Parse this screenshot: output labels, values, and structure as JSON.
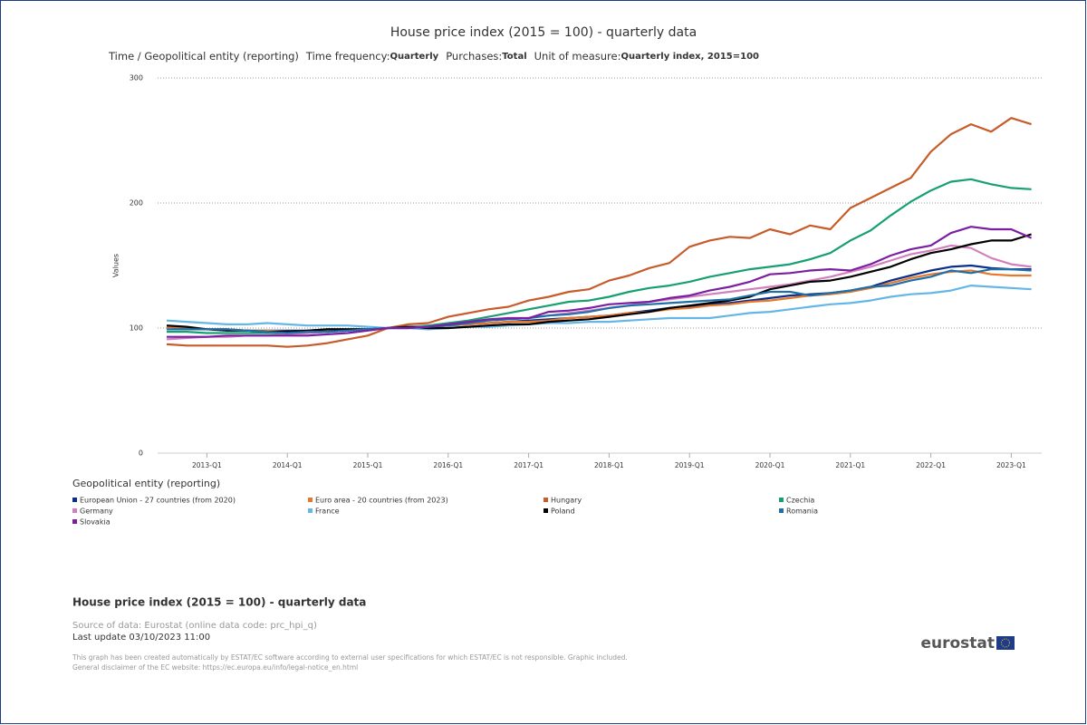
{
  "chart_data": {
    "type": "line",
    "title": "House price index (2015 = 100) - quarterly data",
    "dimensions": "Time / Geopolitical entity (reporting)",
    "filters": [
      {
        "label": "Time frequency:",
        "value": "Quarterly"
      },
      {
        "label": "Purchases:",
        "value": "Total"
      },
      {
        "label": "Unit of measure:",
        "value": "Quarterly index, 2015=100"
      }
    ],
    "y_label": "Values",
    "legend_title": "Geopolitical entity (reporting)",
    "ylim": [
      0,
      300
    ],
    "yticks": [
      0,
      100,
      200,
      300
    ],
    "grid": true,
    "categories": [
      null,
      null,
      "2013-Q1",
      null,
      null,
      null,
      "2014-Q1",
      null,
      null,
      null,
      "2015-Q1",
      null,
      null,
      null,
      "2016-Q1",
      null,
      null,
      null,
      "2017-Q1",
      null,
      null,
      null,
      "2018-Q1",
      null,
      null,
      null,
      "2019-Q1",
      null,
      null,
      null,
      "2020-Q1",
      null,
      null,
      null,
      "2021-Q1",
      null,
      null,
      null,
      "2022-Q1",
      null,
      null,
      null,
      "2023-Q1",
      null
    ],
    "series": [
      {
        "name": "European Union - 27 countries (from 2020)",
        "color": "#0b2e8a",
        "values": [
          101,
          100,
          99,
          99,
          98,
          98,
          98,
          98,
          99,
          99,
          99,
          100,
          101,
          101,
          102,
          103,
          104,
          105,
          106,
          107,
          108,
          109,
          110,
          112,
          114,
          116,
          117,
          119,
          120,
          122,
          124,
          126,
          127,
          128,
          130,
          133,
          138,
          142,
          146,
          149,
          150,
          148,
          147,
          147
        ]
      },
      {
        "name": "Euro area - 20 countries (from 2023)",
        "color": "#e3782f",
        "values": [
          101,
          100,
          99,
          99,
          98,
          98,
          97,
          98,
          98,
          99,
          99,
          100,
          100,
          101,
          102,
          103,
          104,
          105,
          105,
          106,
          108,
          109,
          110,
          112,
          113,
          115,
          116,
          118,
          119,
          121,
          122,
          124,
          126,
          127,
          129,
          132,
          136,
          140,
          143,
          145,
          146,
          143,
          142,
          142
        ]
      },
      {
        "name": "Hungary",
        "color": "#c75b29",
        "values": [
          87,
          86,
          86,
          86,
          86,
          86,
          85,
          86,
          88,
          91,
          94,
          100,
          103,
          104,
          109,
          112,
          115,
          117,
          122,
          125,
          129,
          131,
          138,
          142,
          148,
          152,
          165,
          170,
          173,
          172,
          179,
          175,
          182,
          179,
          196,
          204,
          212,
          220,
          241,
          255,
          263,
          257,
          268,
          263
        ]
      },
      {
        "name": "Czechia",
        "color": "#17a06f",
        "values": [
          97,
          97,
          96,
          96,
          96,
          96,
          96,
          96,
          97,
          98,
          99,
          100,
          101,
          102,
          104,
          106,
          109,
          112,
          115,
          118,
          121,
          122,
          125,
          129,
          132,
          134,
          137,
          141,
          144,
          147,
          149,
          151,
          155,
          160,
          170,
          178,
          190,
          201,
          210,
          217,
          219,
          215,
          212,
          211
        ]
      },
      {
        "name": "Germany",
        "color": "#d27fbe",
        "values": [
          91,
          92,
          93,
          93,
          94,
          94,
          95,
          96,
          97,
          98,
          99,
          100,
          101,
          101,
          102,
          104,
          106,
          107,
          108,
          110,
          112,
          114,
          116,
          118,
          121,
          123,
          125,
          127,
          129,
          131,
          133,
          135,
          138,
          141,
          145,
          149,
          154,
          159,
          162,
          166,
          164,
          156,
          151,
          149
        ]
      },
      {
        "name": "France",
        "color": "#63b6e6",
        "values": [
          106,
          105,
          104,
          103,
          103,
          104,
          103,
          102,
          102,
          102,
          101,
          100,
          100,
          99,
          100,
          101,
          101,
          102,
          103,
          104,
          104,
          105,
          105,
          106,
          107,
          108,
          108,
          108,
          110,
          112,
          113,
          115,
          117,
          119,
          120,
          122,
          125,
          127,
          128,
          130,
          134,
          133,
          132,
          131
        ]
      },
      {
        "name": "Poland",
        "color": "#000000",
        "values": [
          102,
          101,
          99,
          98,
          98,
          97,
          97,
          98,
          99,
          99,
          99,
          100,
          101,
          100,
          100,
          101,
          102,
          103,
          103,
          105,
          106,
          107,
          109,
          111,
          113,
          116,
          118,
          120,
          122,
          125,
          131,
          134,
          137,
          138,
          141,
          145,
          149,
          155,
          160,
          163,
          167,
          170,
          170,
          175
        ]
      },
      {
        "name": "Romania",
        "color": "#1f6fa8",
        "values": [
          99,
          99,
          99,
          99,
          98,
          97,
          96,
          97,
          97,
          98,
          99,
          100,
          100,
          101,
          102,
          104,
          106,
          107,
          108,
          110,
          111,
          113,
          116,
          118,
          119,
          120,
          121,
          122,
          123,
          126,
          129,
          129,
          126,
          128,
          130,
          133,
          134,
          138,
          141,
          146,
          144,
          147,
          147,
          146
        ]
      },
      {
        "name": "Slovakia",
        "color": "#7b1fa2",
        "values": [
          93,
          93,
          93,
          94,
          94,
          94,
          94,
          94,
          95,
          96,
          98,
          100,
          100,
          101,
          103,
          105,
          107,
          108,
          108,
          113,
          114,
          116,
          119,
          120,
          121,
          124,
          126,
          130,
          133,
          137,
          143,
          144,
          146,
          147,
          146,
          151,
          158,
          163,
          166,
          176,
          181,
          179,
          179,
          172
        ]
      }
    ]
  },
  "footer": {
    "title": "House price index (2015 = 100) - quarterly data",
    "source": "Source of data: Eurostat (online data code: prc_hpi_q)",
    "update": "Last update 03/10/2023 11:00",
    "disclaimer": [
      "This graph has been created automatically by ESTAT/EC software according to external user specifications for which ESTAT/EC is not responsible. Graphic included.",
      "General disclaimer of the EC website: https://ec.europa.eu/info/legal-notice_en.html"
    ],
    "logo": "eurostat"
  }
}
